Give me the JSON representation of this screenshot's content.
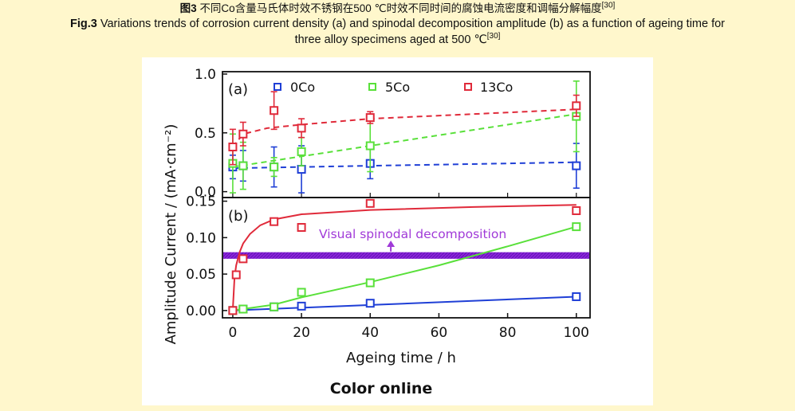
{
  "caption": {
    "cn_label": "图3",
    "cn_text": "不同Co含量马氏体时效不锈钢在500 ℃时效不同时间的腐蚀电流密度和调幅分解幅度",
    "cn_ref": "[30]",
    "en_label": "Fig.3",
    "en_text_line1": "Variations trends of corrosion current density (a) and spinodal decomposition amplitude (b) as a function of ageing time for",
    "en_text_line2": "three alloy specimens aged at 500 ℃",
    "en_ref": "[30]"
  },
  "footer": {
    "note": "Color online"
  },
  "colors": {
    "0Co": "#1f3fd6",
    "5Co": "#59e03a",
    "13Co": "#e02a3a",
    "band": "#8a23d8",
    "annotation": "#a03ad8"
  },
  "chart_data": [
    {
      "type": "scatter",
      "panel_label": "(a)",
      "ylabel": "Amplitude Current / (mA·cm⁻²)",
      "ylim": [
        -0.05,
        1.02
      ],
      "yticks": [
        0.0,
        0.5,
        1.0
      ],
      "ytick_labels": [
        "0.0",
        "0.5",
        "1.0"
      ],
      "legend": [
        "0Co",
        "5Co",
        "13Co"
      ],
      "series": [
        {
          "name": "0Co",
          "x": [
            0,
            3,
            12,
            20,
            40,
            100
          ],
          "y": [
            0.21,
            0.22,
            0.21,
            0.19,
            0.24,
            0.22
          ],
          "err": [
            0.1,
            0.13,
            0.17,
            0.2,
            0.13,
            0.19
          ],
          "fit": [
            [
              0,
              0.2
            ],
            [
              100,
              0.25
            ]
          ]
        },
        {
          "name": "5Co",
          "x": [
            0,
            3,
            12,
            20,
            40,
            100
          ],
          "y": [
            0.24,
            0.22,
            0.21,
            0.34,
            0.39,
            0.64
          ],
          "err": [
            0.25,
            0.2,
            0.08,
            0.12,
            0.22,
            0.3
          ],
          "fit": [
            [
              0,
              0.21
            ],
            [
              100,
              0.66
            ]
          ]
        },
        {
          "name": "13Co",
          "x": [
            0,
            3,
            12,
            20,
            40,
            100
          ],
          "y": [
            0.38,
            0.49,
            0.69,
            0.54,
            0.63,
            0.73
          ],
          "err": [
            0.15,
            0.1,
            0.16,
            0.08,
            0.05,
            0.09
          ],
          "fit": [
            [
              0,
              0.38
            ],
            [
              3,
              0.49
            ],
            [
              10,
              0.54
            ],
            [
              20,
              0.57
            ],
            [
              40,
              0.62
            ],
            [
              70,
              0.66
            ],
            [
              100,
              0.7
            ]
          ]
        }
      ]
    },
    {
      "type": "scatter",
      "panel_label": "(b)",
      "xlabel": "Ageing time / h",
      "xlim": [
        -3,
        104
      ],
      "xticks": [
        0,
        20,
        40,
        60,
        80,
        100
      ],
      "xtick_labels": [
        "0",
        "20",
        "40",
        "60",
        "80",
        "100"
      ],
      "ylim": [
        -0.01,
        0.155
      ],
      "yticks": [
        0.0,
        0.05,
        0.1,
        0.15
      ],
      "ytick_labels": [
        "0.00",
        "0.05",
        "0.10",
        "0.15"
      ],
      "annotation": "Visual spinodal decomposition",
      "band_range": [
        0.071,
        0.08
      ],
      "arrow": {
        "x": 46,
        "y_from": 0.081,
        "y_to": 0.096
      },
      "series": [
        {
          "name": "0Co",
          "x": [
            0,
            3,
            12,
            20,
            40,
            100
          ],
          "y": [
            0.0,
            0.002,
            0.005,
            0.006,
            0.01,
            0.019
          ],
          "fit": [
            [
              0,
              0.0
            ],
            [
              100,
              0.019
            ]
          ]
        },
        {
          "name": "5Co",
          "x": [
            0,
            3,
            12,
            20,
            40,
            100
          ],
          "y": [
            0.0,
            0.002,
            0.005,
            0.025,
            0.038,
            0.115
          ],
          "fit": [
            [
              0,
              0.0
            ],
            [
              12,
              0.008
            ],
            [
              20,
              0.018
            ],
            [
              40,
              0.039
            ],
            [
              60,
              0.062
            ],
            [
              80,
              0.088
            ],
            [
              100,
              0.115
            ]
          ]
        },
        {
          "name": "13Co",
          "x": [
            0,
            1,
            3,
            12,
            20,
            40,
            100
          ],
          "y": [
            0.0,
            0.049,
            0.071,
            0.122,
            0.114,
            0.147,
            0.137
          ],
          "fit": [
            [
              0,
              0.0
            ],
            [
              0.5,
              0.045
            ],
            [
              1,
              0.062
            ],
            [
              2,
              0.08
            ],
            [
              3,
              0.092
            ],
            [
              5,
              0.105
            ],
            [
              8,
              0.117
            ],
            [
              12,
              0.125
            ],
            [
              20,
              0.132
            ],
            [
              40,
              0.138
            ],
            [
              70,
              0.142
            ],
            [
              100,
              0.145
            ]
          ]
        }
      ]
    }
  ]
}
